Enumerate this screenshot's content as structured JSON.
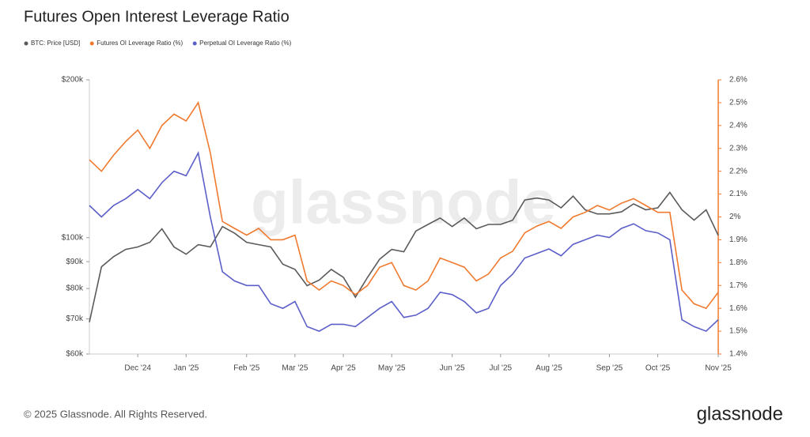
{
  "chart_data": {
    "type": "line",
    "title": "Futures Open Interest Leverage Ratio",
    "watermark": "glassnode",
    "footer": "© 2025 Glassnode. All Rights Reserved.",
    "logo": "glassnode",
    "categories": [
      null,
      null,
      null,
      null,
      "Dec '24",
      null,
      null,
      null,
      "Jan '25",
      null,
      null,
      null,
      null,
      "Feb '25",
      null,
      null,
      null,
      "Mar '25",
      null,
      null,
      null,
      "Apr '25",
      null,
      null,
      null,
      "May '25",
      null,
      null,
      null,
      null,
      "Jun '25",
      null,
      null,
      null,
      "Jul '25",
      null,
      null,
      null,
      "Aug '25",
      null,
      null,
      null,
      null,
      "Sep '25",
      null,
      null,
      null,
      "Oct '25",
      null,
      null,
      null,
      null,
      "Nov '25"
    ],
    "log": true,
    "ylim": [
      60000,
      200000
    ],
    "yticks": [
      {
        "value": 60000,
        "label": "$60k"
      },
      {
        "value": 70000,
        "label": "$70k"
      },
      {
        "value": 80000,
        "label": "$80k"
      },
      {
        "value": 90000,
        "label": "$90k"
      },
      {
        "value": 100000,
        "label": "$100k"
      },
      {
        "value": 200000,
        "label": "$200k"
      }
    ],
    "y2lim": [
      1.4,
      2.6
    ],
    "y2ticks": [
      {
        "value": 1.4,
        "label": "1.4%"
      },
      {
        "value": 1.5,
        "label": "1.5%"
      },
      {
        "value": 1.6,
        "label": "1.6%"
      },
      {
        "value": 1.7,
        "label": "1.7%"
      },
      {
        "value": 1.8,
        "label": "1.8%"
      },
      {
        "value": 1.9,
        "label": "1.9%"
      },
      {
        "value": 2.0,
        "label": "2%"
      },
      {
        "value": 2.1,
        "label": "2.1%"
      },
      {
        "value": 2.2,
        "label": "2.2%"
      },
      {
        "value": 2.3,
        "label": "2.3%"
      },
      {
        "value": 2.4,
        "label": "2.4%"
      },
      {
        "value": 2.5,
        "label": "2.5%"
      },
      {
        "value": 2.6,
        "label": "2.6%"
      }
    ],
    "legend": "top-left",
    "series": [
      {
        "name": "BTC: Price [USD]",
        "color": "#5a5a5a",
        "values": [
          69000,
          88000,
          92000,
          95000,
          96000,
          98000,
          104000,
          96000,
          93000,
          97000,
          96000,
          105000,
          102000,
          98000,
          97000,
          96000,
          89000,
          87000,
          81000,
          83000,
          87000,
          84000,
          77000,
          84000,
          91000,
          95000,
          94000,
          103000,
          106000,
          109000,
          105000,
          109000,
          104000,
          106000,
          106000,
          108000,
          118000,
          119000,
          118000,
          114000,
          120000,
          113000,
          111000,
          111000,
          112000,
          116000,
          113000,
          114000,
          122000,
          113000,
          108000,
          113000,
          101000
        ]
      },
      {
        "name": "Futures OI Leverage Ratio (%)",
        "color": "#f07a2f",
        "axis": "y2",
        "values": [
          2.25,
          2.2,
          2.27,
          2.33,
          2.38,
          2.3,
          2.4,
          2.45,
          2.42,
          2.5,
          2.28,
          1.98,
          1.95,
          1.92,
          1.95,
          1.9,
          1.9,
          1.92,
          1.72,
          1.68,
          1.72,
          1.7,
          1.66,
          1.7,
          1.78,
          1.8,
          1.7,
          1.68,
          1.72,
          1.82,
          1.8,
          1.78,
          1.72,
          1.75,
          1.82,
          1.85,
          1.93,
          1.96,
          1.98,
          1.95,
          2.0,
          2.02,
          2.05,
          2.03,
          2.06,
          2.08,
          2.05,
          2.02,
          2.02,
          1.68,
          1.62,
          1.6,
          1.67
        ]
      },
      {
        "name": "Perpetual OI Leverage Ratio (%)",
        "color": "#5b5fc7",
        "axis": "y2",
        "values": [
          2.05,
          2.0,
          2.05,
          2.08,
          2.12,
          2.08,
          2.15,
          2.2,
          2.18,
          2.28,
          2.0,
          1.76,
          1.72,
          1.7,
          1.7,
          1.62,
          1.6,
          1.63,
          1.52,
          1.5,
          1.53,
          1.53,
          1.52,
          1.56,
          1.6,
          1.63,
          1.56,
          1.57,
          1.6,
          1.67,
          1.66,
          1.63,
          1.58,
          1.6,
          1.7,
          1.75,
          1.82,
          1.84,
          1.86,
          1.83,
          1.88,
          1.9,
          1.92,
          1.91,
          1.95,
          1.97,
          1.94,
          1.93,
          1.9,
          1.55,
          1.52,
          1.5,
          1.55
        ]
      }
    ]
  }
}
